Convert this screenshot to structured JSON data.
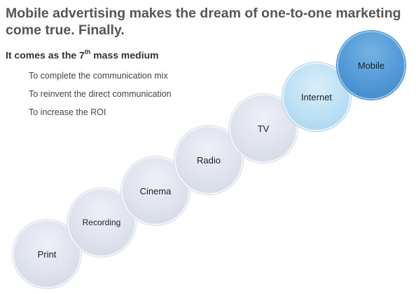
{
  "title": "Mobile advertising makes the dream of one-to-one marketing come true. Finally.",
  "subtitle": {
    "prefix": "It comes as the 7",
    "sup": "th",
    "suffix": " mass medium"
  },
  "bullets": [
    "To complete the communication mix",
    "To reinvent the direct communication",
    "To increase the ROI"
  ],
  "media": [
    "Print",
    "Recording",
    "Cinema",
    "Radio",
    "TV",
    "Internet",
    "Mobile"
  ]
}
